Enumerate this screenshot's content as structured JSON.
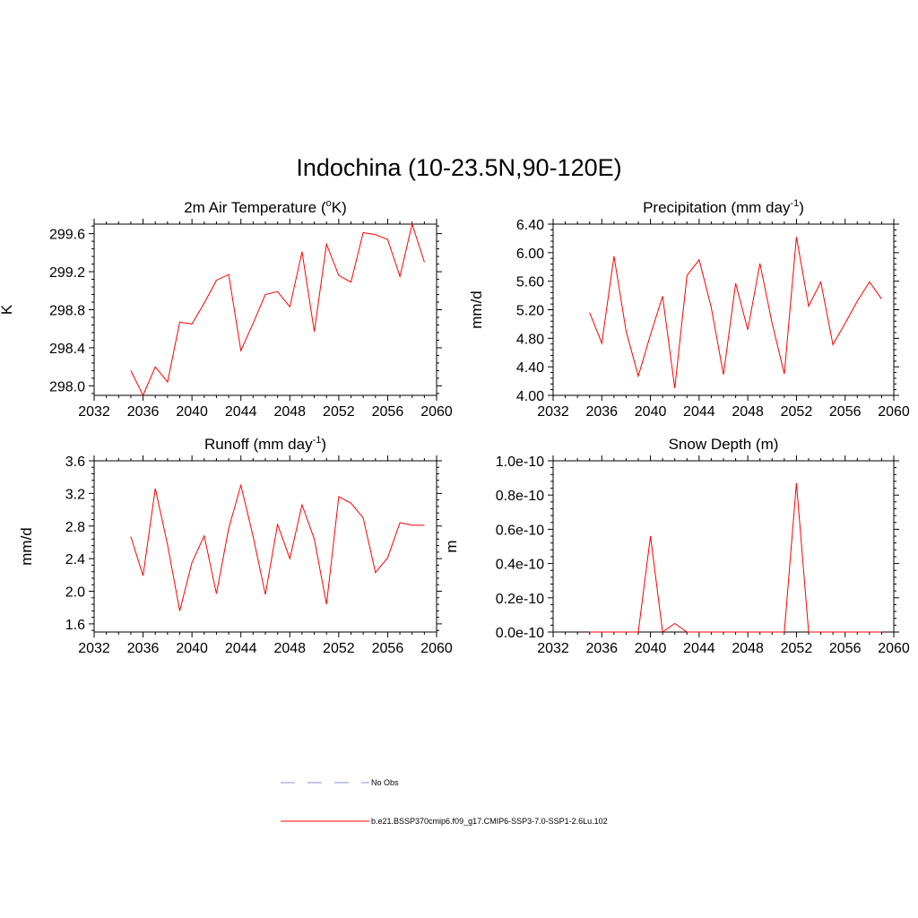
{
  "title": "Indochina (10-23.5N,90-120E)",
  "line_color": "#ff0000",
  "obs_color": "#a3a3e0",
  "legend": [
    {
      "label": "No Obs",
      "style": "dashed",
      "color": "#a3a3e0"
    },
    {
      "label": "b.e21.BSSP370cmip6.f09_g17.CMIP6-SSP3-7.0-SSP1-2.6Lu.102",
      "style": "solid",
      "color": "#ff0000"
    }
  ],
  "chart_data": [
    {
      "type": "line",
      "title": "2m Air Temperature (",
      "title_sup": "o",
      "title_after": "K)",
      "ylabel": "K",
      "xlim": [
        2032,
        2060
      ],
      "xticks": [
        2032,
        2036,
        2040,
        2044,
        2048,
        2052,
        2056,
        2060
      ],
      "ylim": [
        297.9,
        299.7
      ],
      "yticks": [
        298.0,
        298.4,
        298.8,
        299.2,
        299.6
      ],
      "ytick_labels": [
        "298.0",
        "298.4",
        "298.8",
        "299.2",
        "299.6"
      ],
      "series": [
        {
          "x": [
            2035,
            2036,
            2037,
            2038,
            2039,
            2040,
            2041,
            2042,
            2043,
            2044,
            2045,
            2046,
            2047,
            2048,
            2049,
            2050,
            2051,
            2052,
            2053,
            2054,
            2055,
            2056,
            2057,
            2058,
            2059
          ],
          "values": [
            298.16,
            297.9,
            298.2,
            298.04,
            298.67,
            298.65,
            298.87,
            299.11,
            299.17,
            298.37,
            298.66,
            298.96,
            298.99,
            298.83,
            299.41,
            298.57,
            299.49,
            299.16,
            299.09,
            299.61,
            299.59,
            299.54,
            299.15,
            299.72,
            299.3
          ]
        }
      ]
    },
    {
      "type": "line",
      "title": "Precipitation (mm day",
      "title_sup": "-1",
      "title_after": ")",
      "ylabel": "mm/d",
      "xlim": [
        2032,
        2060
      ],
      "xticks": [
        2032,
        2036,
        2040,
        2044,
        2048,
        2052,
        2056,
        2060
      ],
      "ylim": [
        4.0,
        6.4
      ],
      "yticks": [
        4.0,
        4.4,
        4.8,
        5.2,
        5.6,
        6.0,
        6.4
      ],
      "ytick_labels": [
        "4.00",
        "4.40",
        "4.80",
        "5.20",
        "5.60",
        "6.00",
        "6.40"
      ],
      "series": [
        {
          "x": [
            2035,
            2036,
            2037,
            2038,
            2039,
            2040,
            2041,
            2042,
            2043,
            2044,
            2045,
            2046,
            2047,
            2048,
            2049,
            2050,
            2051,
            2052,
            2053,
            2054,
            2055,
            2056,
            2057,
            2058,
            2059
          ],
          "values": [
            5.16,
            4.73,
            5.95,
            4.9,
            4.27,
            4.85,
            5.39,
            4.1,
            5.68,
            5.9,
            5.23,
            4.29,
            5.57,
            4.92,
            5.85,
            5.01,
            4.3,
            6.22,
            5.25,
            5.59,
            4.71,
            5.01,
            5.32,
            5.59,
            5.35
          ]
        }
      ]
    },
    {
      "type": "line",
      "title": "Runoff (mm day",
      "title_sup": "-1",
      "title_after": ")",
      "ylabel": "mm/d",
      "xlim": [
        2032,
        2060
      ],
      "xticks": [
        2032,
        2036,
        2040,
        2044,
        2048,
        2052,
        2056,
        2060
      ],
      "ylim": [
        1.5,
        3.6
      ],
      "yticks": [
        1.6,
        2.0,
        2.4,
        2.8,
        3.2,
        3.6
      ],
      "ytick_labels": [
        "1.6",
        "2.0",
        "2.4",
        "2.8",
        "3.2",
        "3.6"
      ],
      "series": [
        {
          "x": [
            2035,
            2036,
            2037,
            2038,
            2039,
            2040,
            2041,
            2042,
            2043,
            2044,
            2045,
            2046,
            2047,
            2048,
            2049,
            2050,
            2051,
            2052,
            2053,
            2054,
            2055,
            2056,
            2057,
            2058,
            2059
          ],
          "values": [
            2.67,
            2.19,
            3.26,
            2.57,
            1.76,
            2.35,
            2.68,
            1.97,
            2.77,
            3.3,
            2.67,
            1.96,
            2.82,
            2.4,
            3.06,
            2.64,
            1.84,
            3.16,
            3.08,
            2.9,
            2.23,
            2.41,
            2.84,
            2.81,
            2.81
          ]
        }
      ]
    },
    {
      "type": "line",
      "title": "Snow Depth (m)",
      "title_sup": "",
      "title_after": "",
      "ylabel": "m",
      "xlim": [
        2032,
        2060
      ],
      "xticks": [
        2032,
        2036,
        2040,
        2044,
        2048,
        2052,
        2056,
        2060
      ],
      "ylim": [
        0,
        1.0
      ],
      "yticks": [
        0,
        0.2,
        0.4,
        0.6,
        0.8,
        1.0
      ],
      "ytick_labels": [
        "0.0e-10",
        "0.2e-10",
        "0.4e-10",
        "0.6e-10",
        "0.8e-10",
        "1.0e-10"
      ],
      "y_scale_note": "values in units of 1e-10 m",
      "series": [
        {
          "x": [
            2035,
            2036,
            2037,
            2038,
            2039,
            2040,
            2041,
            2042,
            2043,
            2044,
            2045,
            2046,
            2047,
            2048,
            2049,
            2050,
            2051,
            2052,
            2053,
            2054,
            2055,
            2056,
            2057,
            2058,
            2059
          ],
          "values": [
            0,
            0,
            0,
            0,
            0,
            0.56,
            0,
            0.05,
            0,
            0,
            0,
            0,
            0,
            0,
            0,
            0,
            0,
            0.87,
            0,
            0,
            0,
            0,
            0,
            0,
            0
          ]
        }
      ]
    }
  ]
}
